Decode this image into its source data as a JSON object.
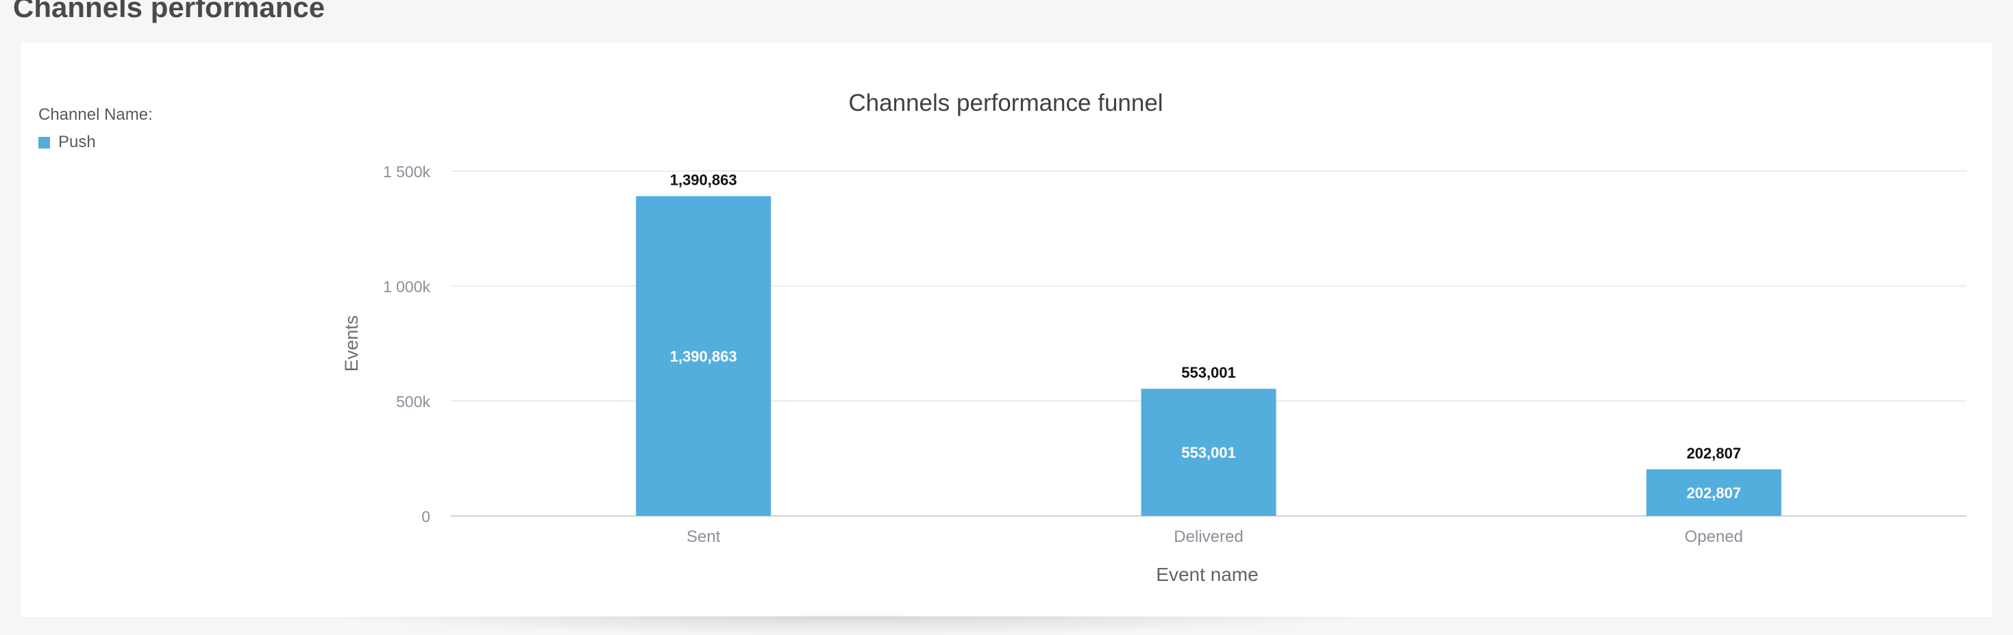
{
  "page": {
    "section_title": "Channels performance"
  },
  "legend": {
    "title": "Channel Name:",
    "items": [
      {
        "label": "Push",
        "color": "#53aedd"
      }
    ]
  },
  "chart_data": {
    "type": "bar",
    "title": "Channels performance funnel",
    "xlabel": "Event name",
    "ylabel": "Events",
    "categories": [
      "Sent",
      "Delivered",
      "Opened"
    ],
    "series": [
      {
        "name": "Push",
        "color": "#53aedd",
        "values": [
          1390863,
          553001,
          202807
        ]
      }
    ],
    "data_labels": [
      "1,390,863",
      "553,001",
      "202,807"
    ],
    "ylim": [
      0,
      1500000
    ],
    "yticks": [
      0,
      500000,
      1000000,
      1500000
    ],
    "ytick_labels": [
      "0",
      "500k",
      "1 000k",
      "1 500k"
    ],
    "grid": true,
    "legend_position": "left"
  }
}
